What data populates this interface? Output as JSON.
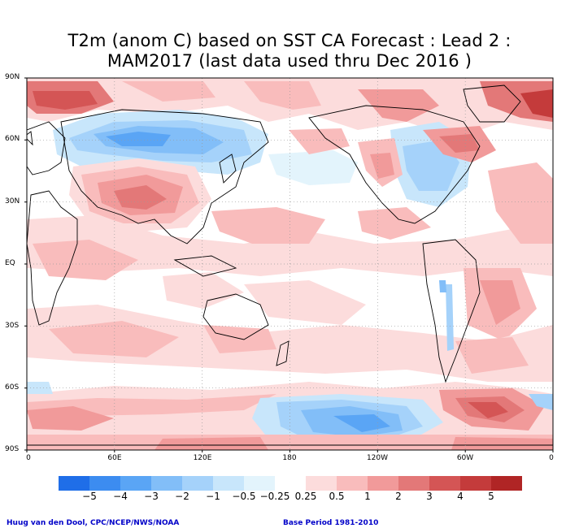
{
  "title": {
    "line1": "T2m (anom C) based on SST CA Forecast : Lead 2 :",
    "line2": "MAM2017 (last data used thru Dec 2016 )"
  },
  "map": {
    "lat_ticks": [
      "90N",
      "60N",
      "30N",
      "EQ",
      "30S",
      "60S",
      "90S"
    ],
    "lon_ticks": [
      "0",
      "60E",
      "120E",
      "180",
      "120W",
      "60W",
      "0"
    ],
    "grid": true,
    "projection": "cylindrical equidistant, 0 to 360 longitude"
  },
  "colorbar": {
    "labels": [
      "−5",
      "−4",
      "−3",
      "−2",
      "−1",
      "−0.5",
      "−0.25",
      "0.25",
      "0.5",
      "1",
      "2",
      "3",
      "4",
      "5"
    ],
    "colors": [
      "#1f6ee8",
      "#3c8cf0",
      "#5aa5f5",
      "#82bef8",
      "#a5d2fa",
      "#c8e6fb",
      "#e3f4fc",
      "#ffffff",
      "#fcdcdc",
      "#f9bcbc",
      "#f19a9a",
      "#e37878",
      "#d45555",
      "#c43b3b",
      "#b02525"
    ]
  },
  "credit": {
    "left": "Huug van den Dool, CPC/NCEP/NWS/NOAA",
    "right": "Base Period 1981-2010"
  }
}
